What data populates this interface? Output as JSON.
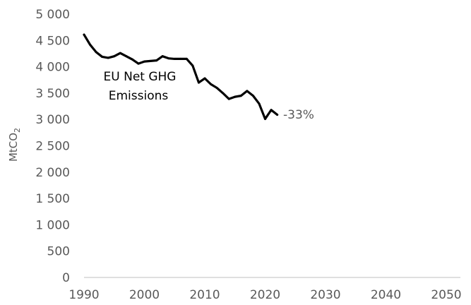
{
  "chart_data": {
    "type": "line",
    "ylabel": "MtCO",
    "ylabel_subscript": "2",
    "xlim": [
      1990,
      2050
    ],
    "ylim": [
      0,
      5000
    ],
    "x_ticks": [
      1990,
      2000,
      2010,
      2020,
      2030,
      2040,
      2050
    ],
    "y_ticks": [
      0,
      500,
      1000,
      1500,
      2000,
      2500,
      3000,
      3500,
      4000,
      4500,
      5000
    ],
    "y_tick_labels": [
      "0",
      "500",
      "1 000",
      "1 500",
      "2 000",
      "2 500",
      "3 000",
      "3 500",
      "4 000",
      "4 500",
      "5 000"
    ],
    "x_tick_labels": [
      "1990",
      "2000",
      "2010",
      "2020",
      "2030",
      "2040",
      "2050"
    ],
    "grid": false,
    "series": [
      {
        "name": "EU Net GHG Emissions",
        "color": "#000000",
        "x": [
          1990,
          1991,
          1992,
          1993,
          1994,
          1995,
          1996,
          1997,
          1998,
          1999,
          2000,
          2001,
          2002,
          2003,
          2004,
          2005,
          2006,
          2007,
          2008,
          2009,
          2010,
          2011,
          2012,
          2013,
          2014,
          2015,
          2016,
          2017,
          2018,
          2019,
          2020,
          2021,
          2022
        ],
        "values": [
          4610,
          4420,
          4280,
          4190,
          4170,
          4200,
          4260,
          4200,
          4140,
          4060,
          4100,
          4110,
          4120,
          4200,
          4160,
          4150,
          4150,
          4150,
          4020,
          3700,
          3780,
          3670,
          3600,
          3500,
          3390,
          3430,
          3450,
          3540,
          3450,
          3300,
          3010,
          3180,
          3090
        ]
      }
    ],
    "annotations": [
      {
        "text_line1": "EU Net GHG",
        "text_line2": "Emissions"
      },
      {
        "text": "-33%"
      }
    ]
  }
}
